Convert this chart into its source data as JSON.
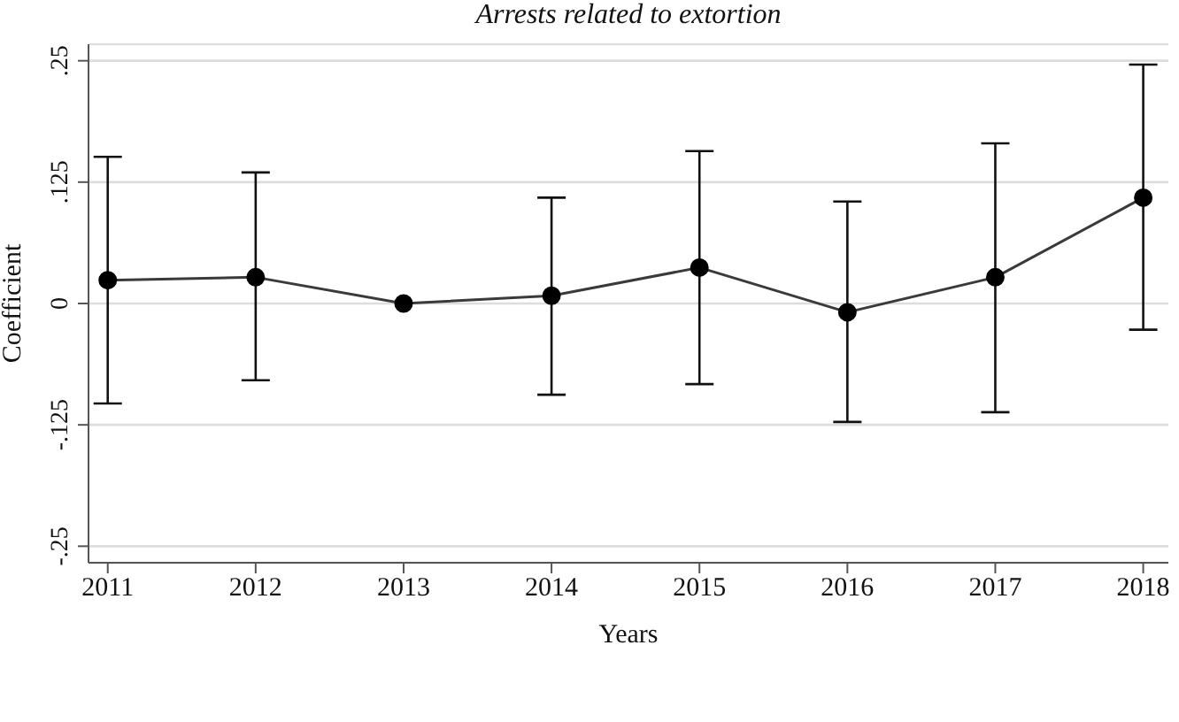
{
  "chart_data": {
    "type": "line",
    "title": "Arrests related to extortion",
    "xlabel": "Years",
    "ylabel": "Coefficient",
    "x": [
      2011,
      2012,
      2013,
      2014,
      2015,
      2016,
      2017,
      2018
    ],
    "series": [
      {
        "color": "#000000",
        "values": [
          0.024,
          0.027,
          0,
          0.008,
          0.037,
          -0.009,
          0.027,
          0.109
        ],
        "errors": [
          [
            -0.103,
            0.151
          ],
          [
            -0.079,
            0.135
          ],
          null,
          [
            -0.094,
            0.109
          ],
          [
            -0.083,
            0.157
          ],
          [
            -0.122,
            0.105
          ],
          [
            -0.112,
            0.165
          ],
          [
            -0.027,
            0.246
          ]
        ]
      }
    ],
    "xlim": [
      2010.87,
      2018.17
    ],
    "xticks": [
      2011,
      2012,
      2013,
      2014,
      2015,
      2016,
      2017,
      2018
    ],
    "ylim": [
      -0.267,
      0.267
    ],
    "yticks": [
      {
        "value": -0.25,
        "label": "-.25"
      },
      {
        "value": -0.125,
        "label": "-.125"
      },
      0,
      {
        "value": 0.125,
        "label": ".125"
      },
      {
        "value": 0.25,
        "label": ".25"
      }
    ],
    "grid": "y",
    "marker": "circle",
    "line_style": "solid",
    "legend": false
  }
}
